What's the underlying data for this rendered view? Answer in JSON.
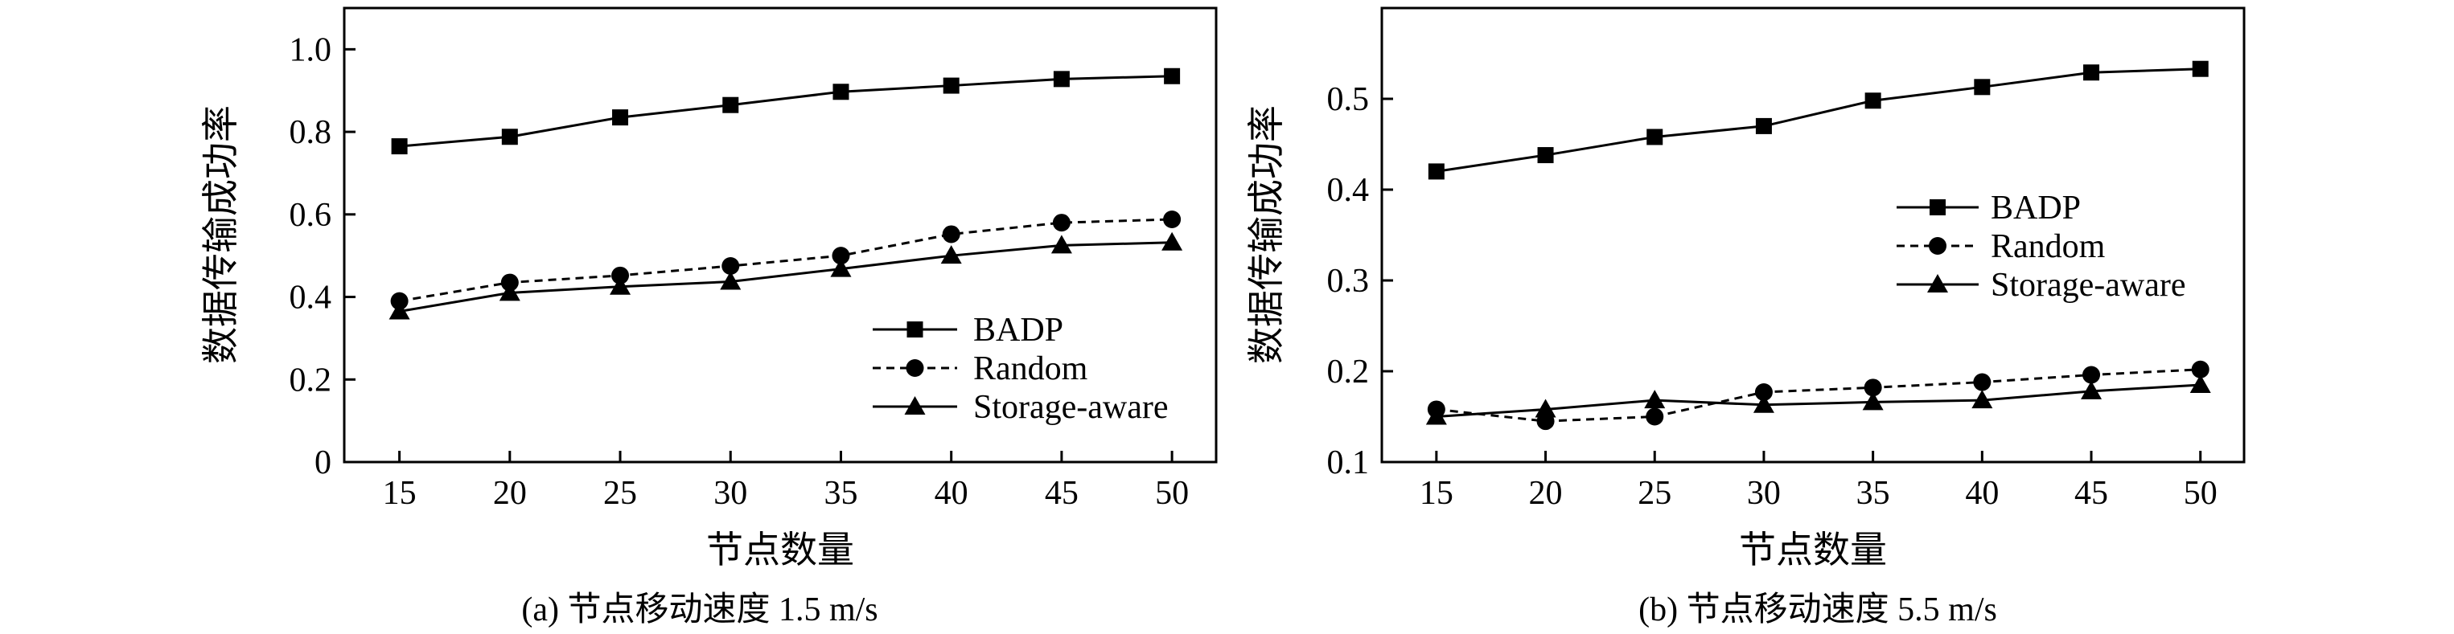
{
  "chart_data": [
    {
      "type": "line",
      "caption": "(a) 节点移动速度 1.5 m/s",
      "xlabel": "节点数量",
      "ylabel": "数据传输成功率",
      "x": [
        15,
        20,
        25,
        30,
        35,
        40,
        45,
        50
      ],
      "xlim": [
        12.5,
        52
      ],
      "ylim": [
        0,
        1.1
      ],
      "xticks": [
        "15",
        "20",
        "25",
        "30",
        "35",
        "40",
        "45",
        "50"
      ],
      "yticks": [
        "0",
        "0.2",
        "0.4",
        "0.6",
        "0.8",
        "1.0"
      ],
      "ytick_values": [
        0,
        0.2,
        0.4,
        0.6,
        0.8,
        1.0
      ],
      "legend_position": "lower-right",
      "series": [
        {
          "name": "BADP",
          "marker": "square",
          "line": "solid",
          "values": [
            0.765,
            0.788,
            0.835,
            0.865,
            0.897,
            0.912,
            0.928,
            0.935
          ]
        },
        {
          "name": "Random",
          "marker": "circle",
          "line": "dashed",
          "values": [
            0.39,
            0.435,
            0.452,
            0.475,
            0.5,
            0.552,
            0.58,
            0.588
          ]
        },
        {
          "name": "Storage-aware",
          "marker": "triangle",
          "line": "solid",
          "values": [
            0.365,
            0.41,
            0.425,
            0.437,
            0.468,
            0.5,
            0.525,
            0.532
          ]
        }
      ]
    },
    {
      "type": "line",
      "caption": "(b) 节点移动速度 5.5 m/s",
      "xlabel": "节点数量",
      "ylabel": "数据传输成功率",
      "x": [
        15,
        20,
        25,
        30,
        35,
        40,
        45,
        50
      ],
      "xlim": [
        12.5,
        52
      ],
      "ylim": [
        0.1,
        0.6
      ],
      "xticks": [
        "15",
        "20",
        "25",
        "30",
        "35",
        "40",
        "45",
        "50"
      ],
      "yticks": [
        "0.1",
        "0.2",
        "0.3",
        "0.4",
        "0.5"
      ],
      "ytick_values": [
        0.1,
        0.2,
        0.3,
        0.4,
        0.5
      ],
      "legend_position": "center-right",
      "series": [
        {
          "name": "BADP",
          "marker": "square",
          "line": "solid",
          "values": [
            0.42,
            0.438,
            0.458,
            0.47,
            0.498,
            0.513,
            0.529,
            0.533
          ]
        },
        {
          "name": "Random",
          "marker": "circle",
          "line": "dashed",
          "values": [
            0.158,
            0.145,
            0.15,
            0.177,
            0.182,
            0.188,
            0.196,
            0.202
          ]
        },
        {
          "name": "Storage-aware",
          "marker": "triangle",
          "line": "solid",
          "values": [
            0.15,
            0.158,
            0.168,
            0.163,
            0.166,
            0.168,
            0.178,
            0.185
          ]
        }
      ]
    }
  ]
}
